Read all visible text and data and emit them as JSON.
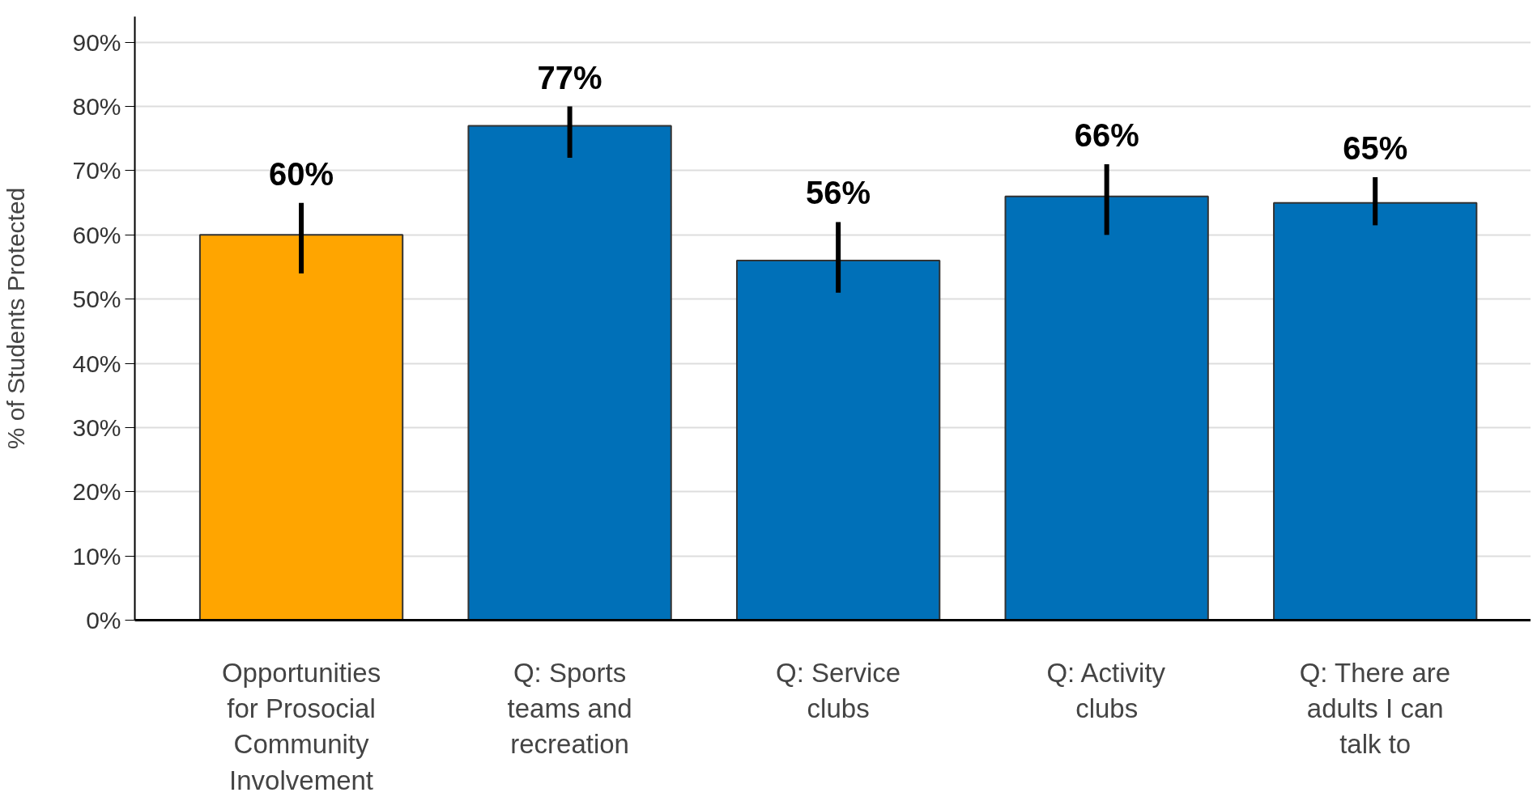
{
  "chart_data": {
    "type": "bar",
    "ylabel": "% of Students Protected",
    "categories": [
      "Opportunities for Prosocial Community Involvement",
      "Q: Sports teams and recreation",
      "Q: Service clubs",
      "Q: Activity clubs",
      "Q: There are adults I can talk to"
    ],
    "values": [
      60,
      77,
      56,
      66,
      65
    ],
    "colors": [
      "#ffa500",
      "#0070b8",
      "#0070b8",
      "#0070b8",
      "#0070b8"
    ],
    "errors": [
      [
        54,
        65
      ],
      [
        72,
        80
      ],
      [
        51,
        62
      ],
      [
        60,
        71
      ],
      [
        61.5,
        69
      ]
    ],
    "value_labels": [
      "60%",
      "77%",
      "56%",
      "66%",
      "65%"
    ],
    "ylim": [
      0,
      94
    ],
    "yticks": [
      {
        "value": 0,
        "label": "0%"
      },
      {
        "value": 10,
        "label": "10%"
      },
      {
        "value": 20,
        "label": "20%"
      },
      {
        "value": 30,
        "label": "30%"
      },
      {
        "value": 40,
        "label": "40%"
      },
      {
        "value": 50,
        "label": "50%"
      },
      {
        "value": 60,
        "label": "60%"
      },
      {
        "value": 70,
        "label": "70%"
      },
      {
        "value": 80,
        "label": "80%"
      },
      {
        "value": 90,
        "label": "90%"
      }
    ],
    "grid": "y"
  }
}
